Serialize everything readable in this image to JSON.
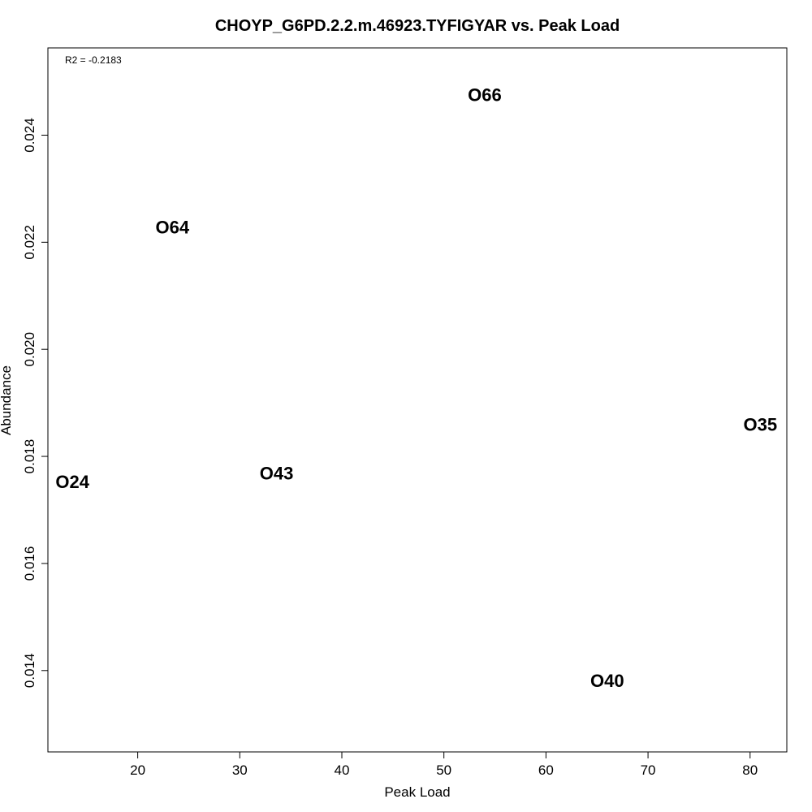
{
  "chart_data": {
    "type": "scatter",
    "title": "CHOYP_G6PD.2.2.m.46923.TYFIGYAR vs. Peak Load",
    "xlabel": "Peak Load",
    "ylabel": "Abundance",
    "annotation": "R2 = -0.2183",
    "xlim": [
      11.2,
      83.6
    ],
    "ylim": [
      0.01248,
      0.02563
    ],
    "x_ticks": [
      {
        "value": 20,
        "label": "20"
      },
      {
        "value": 30,
        "label": "30"
      },
      {
        "value": 40,
        "label": "40"
      },
      {
        "value": 50,
        "label": "50"
      },
      {
        "value": 60,
        "label": "60"
      },
      {
        "value": 70,
        "label": "70"
      },
      {
        "value": 80,
        "label": "80"
      }
    ],
    "y_ticks": [
      {
        "value": 0.014,
        "label": "0.014"
      },
      {
        "value": 0.016,
        "label": "0.016"
      },
      {
        "value": 0.018,
        "label": "0.018"
      },
      {
        "value": 0.02,
        "label": "0.020"
      },
      {
        "value": 0.022,
        "label": "0.022"
      },
      {
        "value": 0.024,
        "label": "0.024"
      }
    ],
    "points": [
      {
        "label": "O66",
        "x": 54,
        "y": 0.02475
      },
      {
        "label": "O64",
        "x": 23.4,
        "y": 0.02228
      },
      {
        "label": "O35",
        "x": 81,
        "y": 0.01859
      },
      {
        "label": "O24",
        "x": 13.6,
        "y": 0.01752
      },
      {
        "label": "O43",
        "x": 33.6,
        "y": 0.01768
      },
      {
        "label": "O40",
        "x": 66,
        "y": 0.01381
      }
    ],
    "grid": false,
    "legend": "none"
  }
}
